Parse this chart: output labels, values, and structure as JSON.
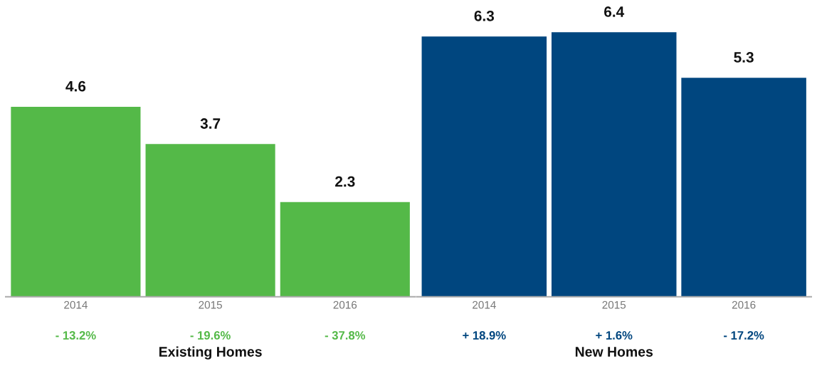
{
  "chart_data": [
    {
      "type": "bar",
      "xlabel": "Existing Homes",
      "categories": [
        "2014",
        "2015",
        "2016"
      ],
      "values": [
        4.6,
        3.7,
        2.3
      ],
      "color": "#54b948",
      "data_labels": true,
      "legend": false,
      "annotations": [
        "- 13.2%",
        "- 19.6%",
        "- 37.8%"
      ]
    },
    {
      "type": "bar",
      "xlabel": "New Homes",
      "categories": [
        "2014",
        "2015",
        "2016"
      ],
      "values": [
        6.3,
        6.4,
        5.3
      ],
      "color": "#00467f",
      "data_labels": true,
      "legend": false,
      "annotations": [
        "+ 18.9%",
        "+ 1.6%",
        "- 17.2%"
      ]
    }
  ]
}
